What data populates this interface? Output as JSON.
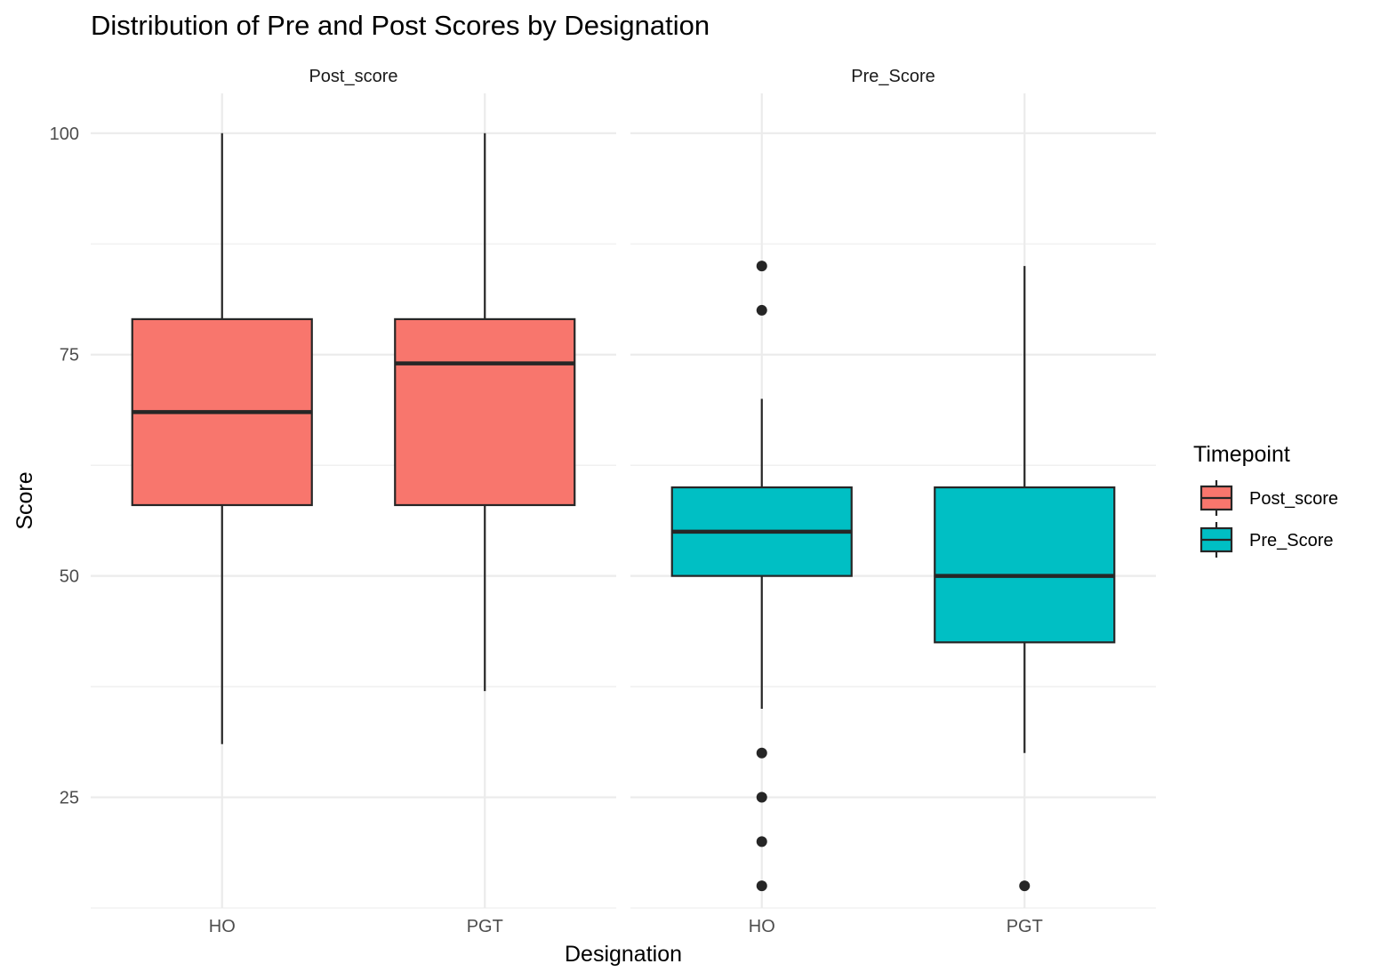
{
  "chart_data": {
    "type": "boxplot",
    "title": "Distribution of Pre and Post Scores by Designation",
    "xlabel": "Designation",
    "ylabel": "Score",
    "ylim": [
      12.5,
      104.5
    ],
    "yticks": [
      25,
      50,
      75,
      100
    ],
    "categories": [
      "HO",
      "PGT"
    ],
    "grid": true,
    "legend": {
      "title": "Timepoint",
      "position": "right",
      "entries": [
        {
          "label": "Post_score",
          "color": "#F8766D"
        },
        {
          "label": "Pre_Score",
          "color": "#00BFC4"
        }
      ]
    },
    "panels": [
      {
        "name": "Post_score",
        "color": "#F8766D",
        "boxes": [
          {
            "category": "HO",
            "whisker_low": 31,
            "q1": 58,
            "median": 68.5,
            "q3": 79,
            "whisker_high": 100,
            "outliers": []
          },
          {
            "category": "PGT",
            "whisker_low": 37,
            "q1": 58,
            "median": 74,
            "q3": 79,
            "whisker_high": 100,
            "outliers": []
          }
        ]
      },
      {
        "name": "Pre_Score",
        "color": "#00BFC4",
        "boxes": [
          {
            "category": "HO",
            "whisker_low": 35,
            "q1": 50,
            "median": 55,
            "q3": 60,
            "whisker_high": 70,
            "outliers": [
              85,
              80,
              30,
              25,
              20,
              15
            ]
          },
          {
            "category": "PGT",
            "whisker_low": 30,
            "q1": 42.5,
            "median": 50,
            "q3": 60,
            "whisker_high": 85,
            "outliers": [
              15
            ]
          }
        ]
      }
    ]
  }
}
